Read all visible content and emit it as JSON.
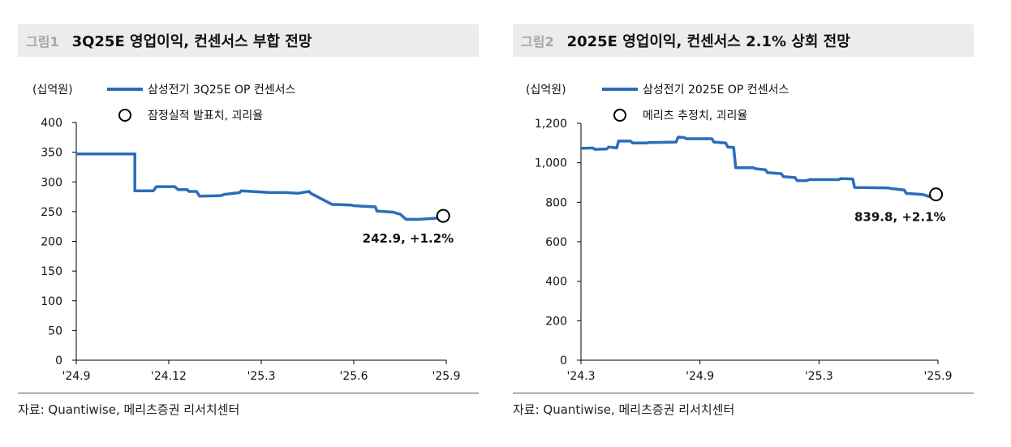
{
  "panels": [
    {
      "fig_label": "그림1",
      "title": "3Q25E 영업이익, 컨센서스 부합 전망",
      "source": "자료: Quantiwise, 메리츠증권 리서치센터",
      "chart_data": {
        "type": "line",
        "unit_label": "(십억원)",
        "ylim": [
          0,
          400
        ],
        "yticks": [
          "0",
          "50",
          "100",
          "150",
          "200",
          "250",
          "300",
          "350",
          "400"
        ],
        "ytick_values": [
          0,
          50,
          100,
          150,
          200,
          250,
          300,
          350,
          400
        ],
        "xlim": [
          0,
          12
        ],
        "xticks": [
          "'24.9",
          "'24.12",
          "'25.3",
          "'25.6",
          "'25.9"
        ],
        "xtick_values": [
          0,
          3,
          6,
          9,
          12
        ],
        "grid": false,
        "legend": "top-left",
        "line_color": "#2a6ebb",
        "series": [
          {
            "name": "삼성전기 3Q25E OP 컨센서스",
            "x": [
              0,
              1.9,
              1.9,
              2.5,
              2.6,
              3.2,
              3.3,
              3.6,
              3.65,
              3.9,
              4.0,
              4.7,
              4.8,
              5.3,
              5.35,
              6.3,
              6.8,
              7.2,
              7.55,
              7.6,
              8.3,
              8.5,
              8.9,
              9.0,
              9.3,
              9.7,
              9.75,
              10.3,
              10.4,
              10.5,
              10.7,
              11.1,
              11.7
            ],
            "y": [
              347,
              347,
              285,
              285,
              292,
              292,
              287,
              287,
              284,
              284,
              276,
              277,
              279,
              282,
              285,
              282,
              282,
              281,
              284,
              281,
              262,
              262,
              261,
              260,
              259,
              258,
              251,
              249,
              247,
              246,
              237,
              237,
              239
            ]
          }
        ],
        "marker": {
          "name": "잠정실적 발표치, 괴리율",
          "x": 11.9,
          "y": 242.9,
          "label": "242.9, +1.2%"
        }
      }
    },
    {
      "fig_label": "그림2",
      "title": "2025E 영업이익, 컨센서스 2.1% 상회 전망",
      "source": "자료: Quantiwise, 메리츠증권 리서치센터",
      "chart_data": {
        "type": "line",
        "unit_label": "(십억원)",
        "ylim": [
          0,
          1200
        ],
        "yticks": [
          "0",
          "200",
          "400",
          "600",
          "800",
          "1,000",
          "1,200"
        ],
        "ytick_values": [
          0,
          200,
          400,
          600,
          800,
          1000,
          1200
        ],
        "xlim": [
          0,
          18
        ],
        "xticks": [
          "'24.3",
          "'24.9",
          "'25.3",
          "'25.9"
        ],
        "xtick_values": [
          0,
          6,
          12,
          18
        ],
        "grid": false,
        "legend": "top-left",
        "line_color": "#2a6ebb",
        "series": [
          {
            "name": "삼성전기 2025E OP 컨센서스",
            "x": [
              0,
              0.6,
              0.7,
              1.3,
              1.4,
              1.8,
              1.9,
              2.5,
              2.6,
              3.3,
              3.4,
              4.8,
              4.9,
              5.2,
              5.3,
              6.6,
              6.7,
              7.3,
              7.4,
              7.7,
              7.8,
              8.7,
              8.8,
              9.3,
              9.4,
              10.1,
              10.2,
              10.8,
              10.9,
              11.4,
              11.5,
              13.0,
              13.1,
              13.7,
              13.8,
              15.5,
              15.6,
              16.3,
              16.4,
              17.2,
              17.8
            ],
            "y": [
              1073,
              1075,
              1068,
              1070,
              1080,
              1075,
              1110,
              1110,
              1100,
              1100,
              1102,
              1105,
              1130,
              1128,
              1122,
              1122,
              1105,
              1100,
              1080,
              1078,
              975,
              975,
              970,
              965,
              950,
              945,
              930,
              925,
              910,
              910,
              915,
              915,
              920,
              918,
              875,
              873,
              870,
              862,
              845,
              840,
              822
            ]
          }
        ],
        "marker": {
          "name": "메리츠 추정치, 괴리율",
          "x": 17.9,
          "y": 839.8,
          "label": "839.8, +2.1%"
        }
      }
    }
  ]
}
